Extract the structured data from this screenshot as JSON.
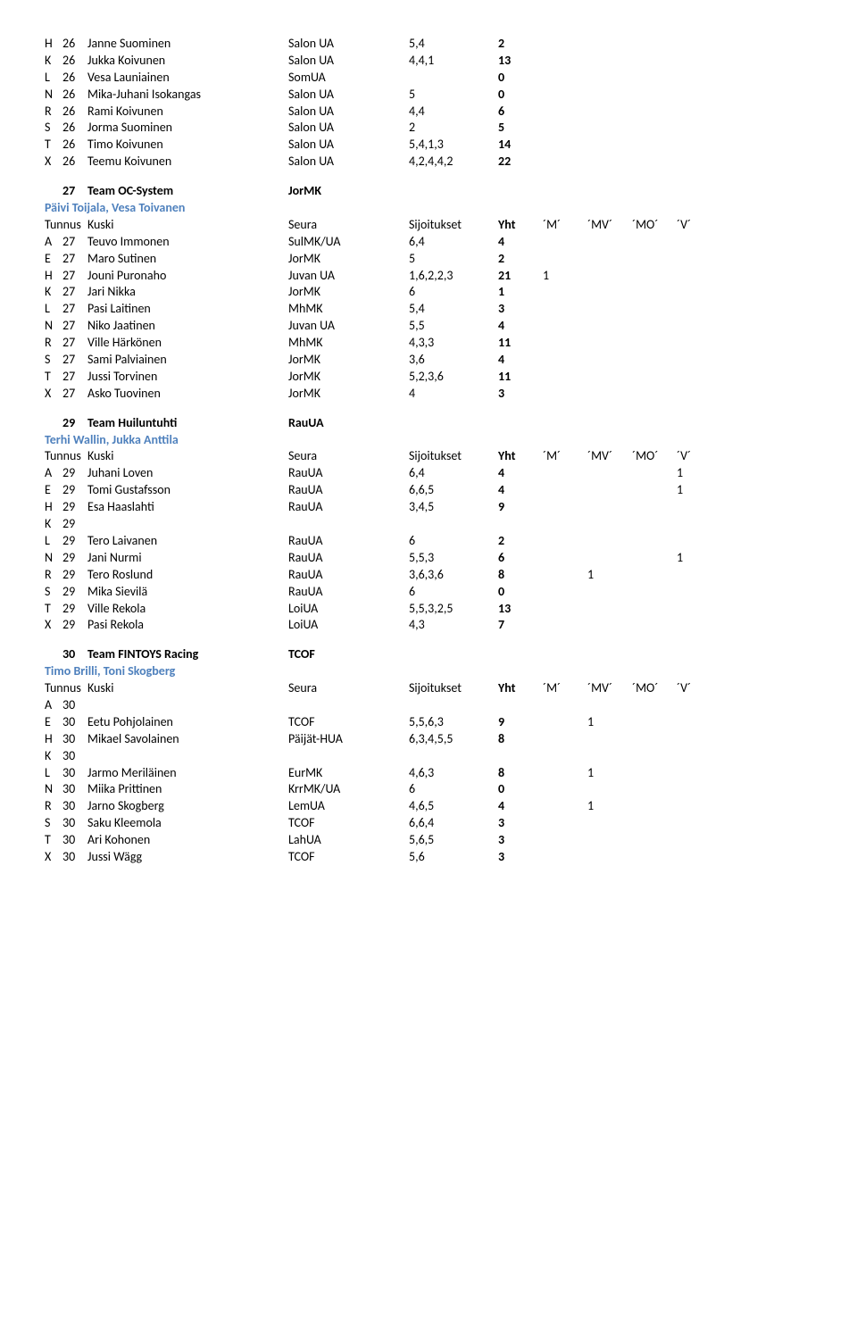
{
  "colors": {
    "text": "#000000",
    "accent": "#4f81bd",
    "background": "#ffffff"
  },
  "fonts": {
    "body": 14,
    "weight_bold": "bold"
  },
  "col_headers": {
    "tunnus": "Tunnus",
    "kuski": "Kuski",
    "seura": "Seura",
    "sijoitukset": "Sijoitukset",
    "yht": "Yht",
    "m": "´M´",
    "mv": "´MV´",
    "mo": "´MO´",
    "v": "´V´"
  },
  "top_rows": [
    {
      "l": "H",
      "n": "26",
      "name": "Janne Suominen",
      "club": "Salon UA",
      "pl": "5,4",
      "yht": "2"
    },
    {
      "l": "K",
      "n": "26",
      "name": "Jukka Koivunen",
      "club": "Salon UA",
      "pl": "4,4,1",
      "yht": "13"
    },
    {
      "l": "L",
      "n": "26",
      "name": "Vesa Launiainen",
      "club": "SomUA",
      "pl": "",
      "yht": "0"
    },
    {
      "l": "N",
      "n": "26",
      "name": "Mika-Juhani Isokangas",
      "club": "Salon UA",
      "pl": "5",
      "yht": "0"
    },
    {
      "l": "R",
      "n": "26",
      "name": "Rami Koivunen",
      "club": "Salon UA",
      "pl": "4,4",
      "yht": "6"
    },
    {
      "l": "S",
      "n": "26",
      "name": "Jorma Suominen",
      "club": "Salon UA",
      "pl": "2",
      "yht": "5"
    },
    {
      "l": "T",
      "n": "26",
      "name": "Timo Koivunen",
      "club": "Salon UA",
      "pl": "5,4,1,3",
      "yht": "14"
    },
    {
      "l": "X",
      "n": "26",
      "name": "Teemu Koivunen",
      "club": "Salon UA",
      "pl": "4,2,4,4,2",
      "yht": "22"
    }
  ],
  "teams": [
    {
      "num": "27",
      "name": "Team OC-System",
      "club": "JorMK",
      "managers": "Päivi Toijala, Vesa Toivanen",
      "rows": [
        {
          "l": "A",
          "n": "27",
          "name": "Teuvo Immonen",
          "club": "SulMK/UA",
          "pl": "6,4",
          "yht": "4"
        },
        {
          "l": "E",
          "n": "27",
          "name": "Maro Sutinen",
          "club": "JorMK",
          "pl": "5",
          "yht": "2"
        },
        {
          "l": "H",
          "n": "27",
          "name": "Jouni Puronaho",
          "club": "Juvan UA",
          "pl": "1,6,2,2,3",
          "yht": "21",
          "m": "1"
        },
        {
          "l": "K",
          "n": "27",
          "name": "Jari Nikka",
          "club": "JorMK",
          "pl": "6",
          "yht": "1"
        },
        {
          "l": "L",
          "n": "27",
          "name": "Pasi Laitinen",
          "club": "MhMK",
          "pl": "5,4",
          "yht": "3"
        },
        {
          "l": "N",
          "n": "27",
          "name": "Niko Jaatinen",
          "club": "Juvan UA",
          "pl": "5,5",
          "yht": "4"
        },
        {
          "l": "R",
          "n": "27",
          "name": "Ville Härkönen",
          "club": "MhMK",
          "pl": "4,3,3",
          "yht": "11"
        },
        {
          "l": "S",
          "n": "27",
          "name": "Sami Palviainen",
          "club": "JorMK",
          "pl": "3,6",
          "yht": "4"
        },
        {
          "l": "T",
          "n": "27",
          "name": "Jussi Torvinen",
          "club": "JorMK",
          "pl": "5,2,3,6",
          "yht": "11"
        },
        {
          "l": "X",
          "n": "27",
          "name": "Asko Tuovinen",
          "club": "JorMK",
          "pl": "4",
          "yht": "3"
        }
      ]
    },
    {
      "num": "29",
      "name": "Team Huiluntuhti",
      "club": "RauUA",
      "managers": "Terhi Wallin, Jukka Anttila",
      "rows": [
        {
          "l": "A",
          "n": "29",
          "name": "Juhani Loven",
          "club": "RauUA",
          "pl": "6,4",
          "yht": "4",
          "v": "1"
        },
        {
          "l": "E",
          "n": "29",
          "name": "Tomi Gustafsson",
          "club": "RauUA",
          "pl": "6,6,5",
          "yht": "4",
          "v": "1"
        },
        {
          "l": "H",
          "n": "29",
          "name": "Esa Haaslahti",
          "club": "RauUA",
          "pl": "3,4,5",
          "yht": "9"
        },
        {
          "l": "K",
          "n": "29",
          "name": "",
          "club": "",
          "pl": "",
          "yht": ""
        },
        {
          "l": "L",
          "n": "29",
          "name": "Tero Laivanen",
          "club": "RauUA",
          "pl": "6",
          "yht": "2"
        },
        {
          "l": "N",
          "n": "29",
          "name": "Jani Nurmi",
          "club": "RauUA",
          "pl": "5,5,3",
          "yht": "6",
          "v": "1"
        },
        {
          "l": "R",
          "n": "29",
          "name": "Tero Roslund",
          "club": "RauUA",
          "pl": "3,6,3,6",
          "yht": "8",
          "mv": "1"
        },
        {
          "l": "S",
          "n": "29",
          "name": "Mika Sievilä",
          "club": "RauUA",
          "pl": "6",
          "yht": "0"
        },
        {
          "l": "T",
          "n": "29",
          "name": "Ville Rekola",
          "club": "LoiUA",
          "pl": "5,5,3,2,5",
          "yht": "13"
        },
        {
          "l": "X",
          "n": "29",
          "name": "Pasi Rekola",
          "club": "LoiUA",
          "pl": "4,3",
          "yht": "7"
        }
      ]
    },
    {
      "num": "30",
      "name": "Team FINTOYS Racing",
      "club": "TCOF",
      "managers": "Timo Brilli, Toni Skogberg",
      "rows": [
        {
          "l": "A",
          "n": "30",
          "name": "",
          "club": "",
          "pl": "",
          "yht": ""
        },
        {
          "l": "E",
          "n": "30",
          "name": "Eetu Pohjolainen",
          "club": "TCOF",
          "pl": "5,5,6,3",
          "yht": "9",
          "mv": "1"
        },
        {
          "l": "H",
          "n": "30",
          "name": "Mikael Savolainen",
          "club": "Päijät-HUA",
          "pl": "6,3,4,5,5",
          "yht": "8"
        },
        {
          "l": "K",
          "n": "30",
          "name": "",
          "club": "",
          "pl": "",
          "yht": ""
        },
        {
          "l": "L",
          "n": "30",
          "name": "Jarmo Meriläinen",
          "club": "EurMK",
          "pl": "4,6,3",
          "yht": "8",
          "mv": "1"
        },
        {
          "l": "N",
          "n": "30",
          "name": "Miika Prittinen",
          "club": "KrrMK/UA",
          "pl": "6",
          "yht": "0"
        },
        {
          "l": "R",
          "n": "30",
          "name": "Jarno Skogberg",
          "club": "LemUA",
          "pl": "4,6,5",
          "yht": "4",
          "mv": "1"
        },
        {
          "l": "S",
          "n": "30",
          "name": "Saku Kleemola",
          "club": "TCOF",
          "pl": "6,6,4",
          "yht": "3"
        },
        {
          "l": "T",
          "n": "30",
          "name": "Ari Kohonen",
          "club": "LahUA",
          "pl": "5,6,5",
          "yht": "3"
        },
        {
          "l": "X",
          "n": "30",
          "name": "Jussi Wägg",
          "club": "TCOF",
          "pl": "5,6",
          "yht": "3"
        }
      ]
    }
  ]
}
